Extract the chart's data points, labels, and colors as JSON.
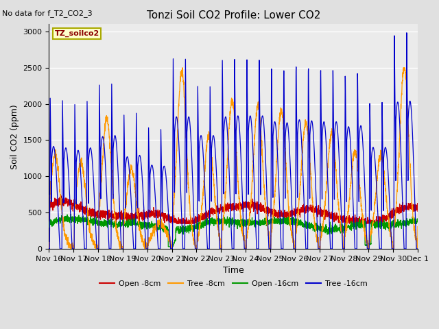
{
  "title": "Tonzi Soil CO2 Profile: Lower CO2",
  "no_data_text": "No data for f_T2_CO2_3",
  "ylabel": "Soil CO2 (ppm)",
  "xlabel": "Time",
  "legend_label": "TZ_soilco2",
  "ylim": [
    0,
    3100
  ],
  "xlim": [
    0,
    15
  ],
  "series": {
    "open_8cm": {
      "color": "#cc0000",
      "label": "Open -8cm"
    },
    "tree_8cm": {
      "color": "#ff9900",
      "label": "Tree -8cm"
    },
    "open_16cm": {
      "color": "#009900",
      "label": "Open -16cm"
    },
    "tree_16cm": {
      "color": "#0000cc",
      "label": "Tree -16cm"
    }
  },
  "bg_color": "#e0e0e0",
  "plot_bg": "#ebebeb",
  "xtick_labels": [
    "Nov 16",
    "Nov 17",
    "Nov 18",
    "Nov 19",
    "Nov 20",
    "Nov 21",
    "Nov 22",
    "Nov 23",
    "Nov 24",
    "Nov 25",
    "Nov 26",
    "Nov 27",
    "Nov 28",
    "Nov 29",
    "Nov 30",
    "Dec 1"
  ],
  "ytick_labels": [
    "0",
    "500",
    "1000",
    "1500",
    "2000",
    "2500",
    "3000"
  ],
  "ytick_positions": [
    0,
    500,
    1000,
    1500,
    2000,
    2500,
    3000
  ],
  "figsize": [
    6.4,
    4.8
  ],
  "dpi": 100,
  "title_fontsize": 11,
  "axis_fontsize": 9,
  "tick_fontsize": 8
}
